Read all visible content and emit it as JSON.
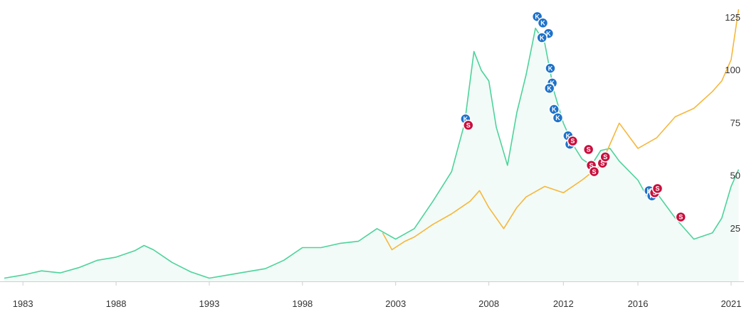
{
  "chart_data": {
    "type": "line",
    "title": "",
    "xlabel": "",
    "ylabel": "",
    "xlim": [
      1982.0,
      2021.5
    ],
    "ylim": [
      0,
      130
    ],
    "grid": false,
    "x_ticks": [
      {
        "value": 1983,
        "label": "1983"
      },
      {
        "value": 1988,
        "label": "1988"
      },
      {
        "value": 1993,
        "label": "1993"
      },
      {
        "value": 1998,
        "label": "1998"
      },
      {
        "value": 2003,
        "label": "2003"
      },
      {
        "value": 2008,
        "label": "2008"
      },
      {
        "value": 2012,
        "label": "2012"
      },
      {
        "value": 2016,
        "label": "2016"
      },
      {
        "value": 2021,
        "label": "2021"
      }
    ],
    "y_ticks": [
      {
        "value": 25,
        "label": "25"
      },
      {
        "value": 50,
        "label": "50"
      },
      {
        "value": 75,
        "label": "75"
      },
      {
        "value": 100,
        "label": "100"
      },
      {
        "value": 125,
        "label": "125"
      }
    ],
    "colors": {
      "series_green": "#4cd39b",
      "series_green_fill": "#f2fbf7",
      "series_orange": "#f6b73c",
      "buy_marker": "#1e72c9",
      "sell_marker": "#c8103e",
      "axis": "#cfcfcf"
    },
    "series": [
      {
        "key": "green",
        "points": [
          [
            1982.0,
            1.5
          ],
          [
            1983.0,
            3.0
          ],
          [
            1984.0,
            5.0
          ],
          [
            1985.0,
            4.0
          ],
          [
            1986.0,
            6.5
          ],
          [
            1987.0,
            10.0
          ],
          [
            1988.0,
            11.5
          ],
          [
            1989.0,
            14.5
          ],
          [
            1989.5,
            17.0
          ],
          [
            1990.0,
            15.0
          ],
          [
            1991.0,
            9.0
          ],
          [
            1992.0,
            4.5
          ],
          [
            1993.0,
            1.5
          ],
          [
            1994.0,
            3.0
          ],
          [
            1995.0,
            4.5
          ],
          [
            1996.0,
            6.0
          ],
          [
            1997.0,
            10.0
          ],
          [
            1998.0,
            16.0
          ],
          [
            1999.0,
            16.0
          ],
          [
            2000.0,
            18.0
          ],
          [
            2001.0,
            19.0
          ],
          [
            2002.0,
            25.0
          ],
          [
            2003.0,
            20.0
          ],
          [
            2004.0,
            25.0
          ],
          [
            2005.0,
            38.0
          ],
          [
            2006.0,
            52.0
          ],
          [
            2006.7,
            75.0
          ],
          [
            2007.2,
            109.0
          ],
          [
            2007.6,
            100.0
          ],
          [
            2008.0,
            95.0
          ],
          [
            2008.4,
            73.0
          ],
          [
            2009.0,
            55.0
          ],
          [
            2009.5,
            80.0
          ],
          [
            2010.0,
            98.0
          ],
          [
            2010.5,
            120.0
          ],
          [
            2011.0,
            113.0
          ],
          [
            2011.5,
            90.0
          ],
          [
            2012.0,
            75.0
          ],
          [
            2012.5,
            65.0
          ],
          [
            2013.0,
            58.0
          ],
          [
            2013.5,
            55.0
          ],
          [
            2014.0,
            62.0
          ],
          [
            2014.5,
            63.0
          ],
          [
            2015.0,
            57.0
          ],
          [
            2016.0,
            48.0
          ],
          [
            2016.5,
            40.0
          ],
          [
            2017.0,
            42.0
          ],
          [
            2018.0,
            30.0
          ],
          [
            2019.0,
            20.0
          ],
          [
            2020.0,
            23.0
          ],
          [
            2020.5,
            30.0
          ],
          [
            2021.0,
            45.0
          ],
          [
            2021.4,
            53.0
          ]
        ]
      },
      {
        "key": "orange",
        "points": [
          [
            2002.3,
            23.0
          ],
          [
            2002.8,
            15.0
          ],
          [
            2003.5,
            19.0
          ],
          [
            2004.0,
            21.0
          ],
          [
            2005.0,
            27.0
          ],
          [
            2006.0,
            32.0
          ],
          [
            2007.0,
            38.0
          ],
          [
            2007.5,
            43.0
          ],
          [
            2008.0,
            35.0
          ],
          [
            2008.8,
            25.0
          ],
          [
            2009.5,
            35.0
          ],
          [
            2010.0,
            40.0
          ],
          [
            2011.0,
            45.0
          ],
          [
            2012.0,
            42.0
          ],
          [
            2013.0,
            48.0
          ],
          [
            2014.0,
            55.0
          ],
          [
            2014.5,
            65.0
          ],
          [
            2015.0,
            75.0
          ],
          [
            2016.0,
            63.0
          ],
          [
            2017.0,
            68.0
          ],
          [
            2018.0,
            78.0
          ],
          [
            2019.0,
            82.0
          ],
          [
            2020.0,
            90.0
          ],
          [
            2020.5,
            95.0
          ],
          [
            2021.0,
            105.0
          ],
          [
            2021.4,
            129.0
          ]
        ]
      }
    ],
    "markers": [
      {
        "label": "K",
        "x": 2006.75,
        "y": 77.0,
        "kind": "buy"
      },
      {
        "label": "S",
        "x": 2006.9,
        "y": 74.0,
        "kind": "sell"
      },
      {
        "label": "K",
        "x": 2010.6,
        "y": 125.5,
        "kind": "buy"
      },
      {
        "label": "K",
        "x": 2010.9,
        "y": 122.5,
        "kind": "buy"
      },
      {
        "label": "K",
        "x": 2011.2,
        "y": 117.5,
        "kind": "buy"
      },
      {
        "label": "K",
        "x": 2010.85,
        "y": 115.5,
        "kind": "buy"
      },
      {
        "label": "K",
        "x": 2011.3,
        "y": 101.0,
        "kind": "buy"
      },
      {
        "label": "K",
        "x": 2011.4,
        "y": 94.0,
        "kind": "buy"
      },
      {
        "label": "K",
        "x": 2011.25,
        "y": 91.5,
        "kind": "buy"
      },
      {
        "label": "K",
        "x": 2011.5,
        "y": 81.5,
        "kind": "buy"
      },
      {
        "label": "K",
        "x": 2011.7,
        "y": 77.5,
        "kind": "buy"
      },
      {
        "label": "K",
        "x": 2012.25,
        "y": 69.0,
        "kind": "buy"
      },
      {
        "label": "K",
        "x": 2012.35,
        "y": 65.0,
        "kind": "buy"
      },
      {
        "label": "S",
        "x": 2012.5,
        "y": 66.5,
        "kind": "sell"
      },
      {
        "label": "S",
        "x": 2013.35,
        "y": 62.5,
        "kind": "sell"
      },
      {
        "label": "S",
        "x": 2013.5,
        "y": 55.0,
        "kind": "sell"
      },
      {
        "label": "S",
        "x": 2013.65,
        "y": 52.0,
        "kind": "sell"
      },
      {
        "label": "S",
        "x": 2014.1,
        "y": 56.0,
        "kind": "sell"
      },
      {
        "label": "S",
        "x": 2014.25,
        "y": 59.0,
        "kind": "sell"
      },
      {
        "label": "K",
        "x": 2016.6,
        "y": 43.0,
        "kind": "buy"
      },
      {
        "label": "K",
        "x": 2016.75,
        "y": 40.5,
        "kind": "buy"
      },
      {
        "label": "S",
        "x": 2016.9,
        "y": 42.0,
        "kind": "sell"
      },
      {
        "label": "S",
        "x": 2017.05,
        "y": 44.0,
        "kind": "sell"
      },
      {
        "label": "S",
        "x": 2018.3,
        "y": 30.5,
        "kind": "sell"
      }
    ]
  }
}
